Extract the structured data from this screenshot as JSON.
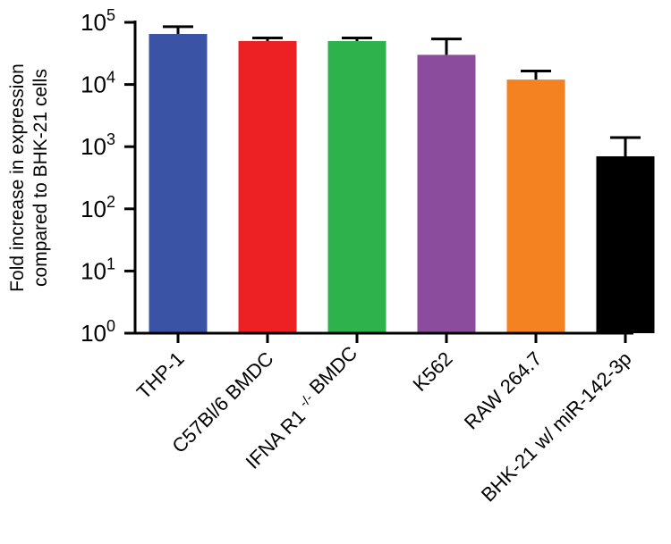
{
  "chart_data": {
    "type": "bar",
    "scale": "log",
    "ylabel_lines": [
      "Fold increase in expression",
      "compared to BHK-21 cells"
    ],
    "xlabel": "",
    "ylim": [
      1,
      100000
    ],
    "y_ticks": [
      {
        "base": "10",
        "exp": "0"
      },
      {
        "base": "10",
        "exp": "1"
      },
      {
        "base": "10",
        "exp": "2"
      },
      {
        "base": "10",
        "exp": "3"
      },
      {
        "base": "10",
        "exp": "4"
      },
      {
        "base": "10",
        "exp": "5"
      }
    ],
    "categories": [
      {
        "parts": [
          {
            "t": "THP-1"
          }
        ]
      },
      {
        "parts": [
          {
            "t": "C57Bl/6 BMDC"
          }
        ]
      },
      {
        "parts": [
          {
            "t": "IFNA R1 "
          },
          {
            "t": "-/-",
            "sup": true
          },
          {
            "t": " BMDC"
          }
        ]
      },
      {
        "parts": [
          {
            "t": "K562"
          }
        ]
      },
      {
        "parts": [
          {
            "t": "RAW 264.7"
          }
        ]
      },
      {
        "parts": [
          {
            "t": "BHK-21 w/ miR-142-3p"
          }
        ]
      }
    ],
    "values": [
      65000,
      50000,
      50000,
      30000,
      12000,
      700
    ],
    "errors_upper": [
      85000,
      56000,
      56000,
      54000,
      16500,
      1400
    ],
    "colors": [
      "#3a53a4",
      "#ed2024",
      "#2eb24c",
      "#8b4c9e",
      "#f58220",
      "#000000"
    ],
    "grid": false,
    "legend": "none"
  }
}
